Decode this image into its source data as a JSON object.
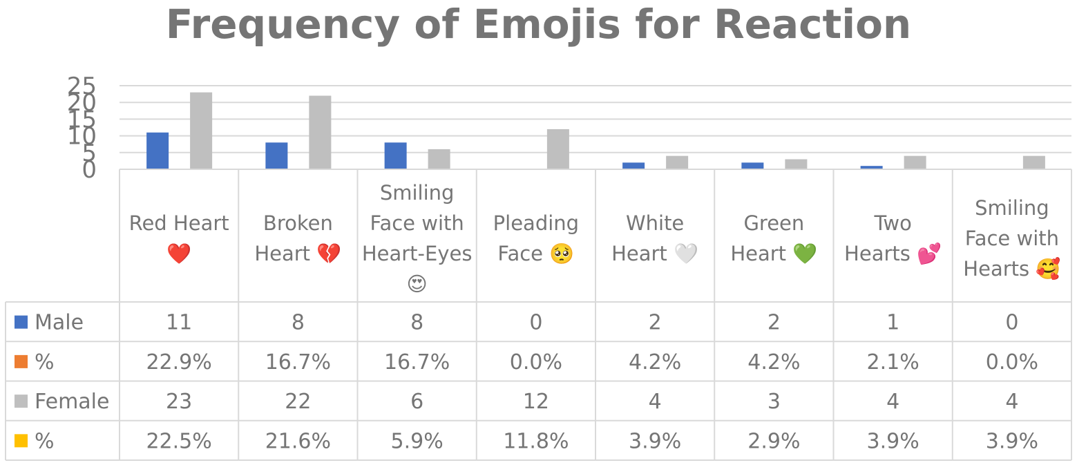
{
  "chart_data": {
    "type": "bar",
    "title": "Frequency of Emojis for Reaction",
    "xlabel": "",
    "ylabel": "",
    "ylim": [
      0,
      25
    ],
    "yticks": [
      0,
      5,
      10,
      15,
      20,
      25
    ],
    "grid": true,
    "legend": "data-table",
    "categories": [
      [
        "Red Heart",
        "❤️"
      ],
      [
        "Broken",
        "Heart 💔"
      ],
      [
        "Smiling",
        "Face with",
        "Heart-Eyes",
        "😍"
      ],
      [
        "Pleading",
        "Face 🥺"
      ],
      [
        "White",
        "Heart 🤍"
      ],
      [
        "Green",
        "Heart 💚"
      ],
      [
        "Two",
        "Hearts 💕"
      ],
      [
        "Smiling",
        "Face with",
        "Hearts 🥰"
      ]
    ],
    "series": [
      {
        "name": "Male",
        "color": "#4472c4",
        "values": [
          11,
          8,
          8,
          0,
          2,
          2,
          1,
          0
        ],
        "plotted": true
      },
      {
        "name": "%",
        "color": "#ed7d31",
        "values": [
          "22.9%",
          "16.7%",
          "16.7%",
          "0.0%",
          "4.2%",
          "4.2%",
          "2.1%",
          "0.0%"
        ],
        "plotted": false
      },
      {
        "name": "Female",
        "color": "#bfbfbf",
        "values": [
          23,
          22,
          6,
          12,
          4,
          3,
          4,
          4
        ],
        "plotted": true
      },
      {
        "name": "%",
        "color": "#ffc000",
        "values": [
          "22.5%",
          "21.6%",
          "5.9%",
          "11.8%",
          "3.9%",
          "2.9%",
          "3.9%",
          "3.9%"
        ],
        "plotted": false
      }
    ]
  }
}
